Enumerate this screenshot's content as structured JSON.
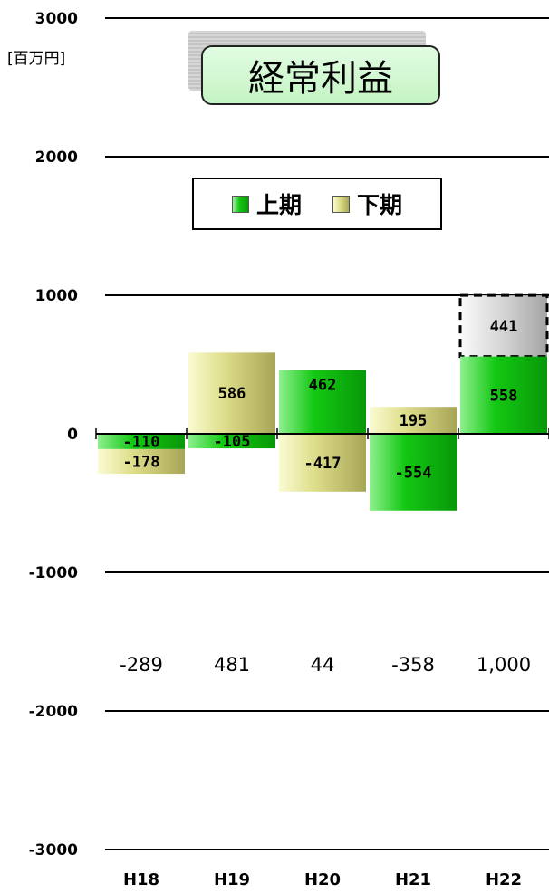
{
  "chart_data": {
    "type": "bar",
    "title": "経常利益",
    "unit_label": "[百万円]",
    "categories": [
      "H18",
      "H19",
      "H20",
      "H21",
      "H22"
    ],
    "series": [
      {
        "name": "上期",
        "values": [
          -110,
          -105,
          462,
          -554,
          558
        ]
      },
      {
        "name": "下期",
        "values": [
          -178,
          586,
          -417,
          195,
          441
        ]
      }
    ],
    "value_labels": {
      "first": [
        "-110",
        "-105",
        "462",
        "-554",
        "558"
      ],
      "second": [
        "-178",
        "586",
        "-417",
        "195",
        "441"
      ]
    },
    "totals": [
      "-289",
      "481",
      "44",
      "-358",
      "1,000"
    ],
    "forecast_category": "H22",
    "y_ticks": [
      {
        "value": 3000,
        "label": "3000"
      },
      {
        "value": 2000,
        "label": "2000"
      },
      {
        "value": 1000,
        "label": "1000"
      },
      {
        "value": 0,
        "label": "0"
      },
      {
        "value": -1000,
        "label": "-1000"
      },
      {
        "value": -2000,
        "label": "-2000"
      },
      {
        "value": -3000,
        "label": "-3000"
      }
    ],
    "ylim": [
      -3000,
      3000
    ],
    "grid": true,
    "legend_position": "top",
    "colors": {
      "first_half": "#11c411",
      "second_half": "#dcdc88",
      "forecast": "#c8c8c8"
    }
  }
}
